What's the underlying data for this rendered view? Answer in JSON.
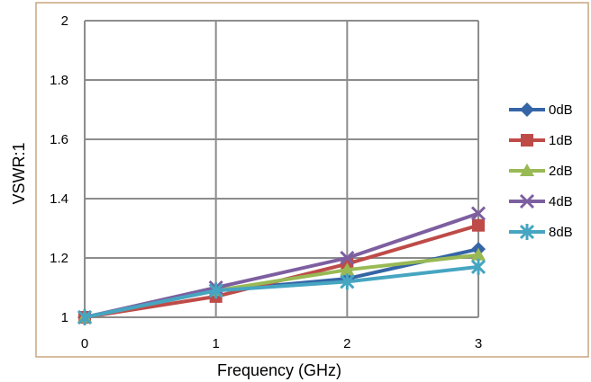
{
  "chart_data": {
    "type": "line",
    "xlabel": "Frequency (GHz)",
    "ylabel": "VSWR:1",
    "x": [
      0,
      1,
      2,
      3
    ],
    "x_ticks": [
      "0",
      "1",
      "2",
      "3"
    ],
    "y_ticks": [
      "1",
      "1.2",
      "1.4",
      "1.6",
      "1.8",
      "2"
    ],
    "xlim": [
      0,
      3
    ],
    "ylim": [
      1,
      2
    ],
    "grid": true,
    "legend_position": "right",
    "series": [
      {
        "name": "0dB",
        "values": [
          1.0,
          1.09,
          1.13,
          1.23
        ],
        "color": "#3565A6",
        "marker": "diamond"
      },
      {
        "name": "1dB",
        "values": [
          1.0,
          1.07,
          1.18,
          1.31
        ],
        "color": "#BE4B48",
        "marker": "square"
      },
      {
        "name": "2dB",
        "values": [
          1.0,
          1.09,
          1.16,
          1.21
        ],
        "color": "#98B954",
        "marker": "triangle"
      },
      {
        "name": "4dB",
        "values": [
          1.0,
          1.1,
          1.2,
          1.35
        ],
        "color": "#7D5FA0",
        "marker": "x"
      },
      {
        "name": "8dB",
        "values": [
          1.0,
          1.09,
          1.12,
          1.17
        ],
        "color": "#46A5C1",
        "marker": "star"
      }
    ],
    "frame_color": "#C8A67E",
    "grid_color": "#8C8C8C"
  }
}
